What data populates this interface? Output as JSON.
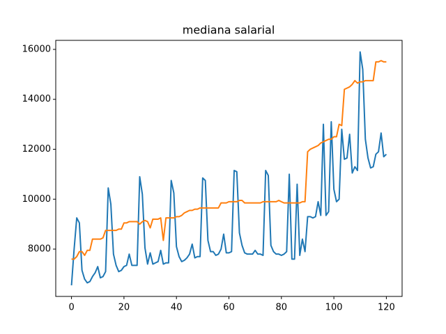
{
  "chart_data": {
    "type": "line",
    "title": "mediana salarial",
    "x": [
      0,
      1,
      2,
      3,
      4,
      5,
      6,
      7,
      8,
      9,
      10,
      11,
      12,
      13,
      14,
      15,
      16,
      17,
      18,
      19,
      20,
      21,
      22,
      23,
      24,
      25,
      26,
      27,
      28,
      29,
      30,
      31,
      32,
      33,
      34,
      35,
      36,
      37,
      38,
      39,
      40,
      41,
      42,
      43,
      44,
      45,
      46,
      47,
      48,
      49,
      50,
      51,
      52,
      53,
      54,
      55,
      56,
      57,
      58,
      59,
      60,
      61,
      62,
      63,
      64,
      65,
      66,
      67,
      68,
      69,
      70,
      71,
      72,
      73,
      74,
      75,
      76,
      77,
      78,
      79,
      80,
      81,
      82,
      83,
      84,
      85,
      86,
      87,
      88,
      89,
      90,
      91,
      92,
      93,
      94,
      95,
      96,
      97,
      98,
      99,
      100,
      101,
      102,
      103,
      104,
      105,
      106,
      107,
      108,
      109,
      110,
      111,
      112,
      113,
      114,
      115,
      116,
      117,
      118,
      119,
      120
    ],
    "series": [
      {
        "color": "#1f77b4",
        "values": [
          6550,
          8000,
          9250,
          9050,
          7150,
          6800,
          6650,
          6700,
          6900,
          7050,
          7300,
          6850,
          6900,
          7100,
          10450,
          9800,
          7800,
          7350,
          7100,
          7150,
          7300,
          7350,
          7800,
          7350,
          7350,
          7350,
          10900,
          10200,
          8050,
          7400,
          7850,
          7400,
          7450,
          7500,
          7950,
          7400,
          7450,
          7450,
          10750,
          10250,
          8100,
          7700,
          7500,
          7550,
          7650,
          7800,
          8200,
          7650,
          7700,
          7700,
          10850,
          10750,
          8350,
          7900,
          7900,
          7750,
          7800,
          8000,
          8600,
          7850,
          7850,
          7900,
          11150,
          11100,
          8650,
          8150,
          7850,
          7800,
          7800,
          7800,
          7950,
          7800,
          7800,
          7750,
          11150,
          10950,
          8150,
          7900,
          7800,
          7800,
          7750,
          7800,
          7900,
          11000,
          7600,
          7600,
          10600,
          7750,
          8400,
          7900,
          9300,
          9300,
          9250,
          9300,
          9900,
          9350,
          13000,
          9350,
          9500,
          13100,
          10400,
          9900,
          10000,
          12800,
          11600,
          11650,
          12600,
          11050,
          11300,
          11150,
          15900,
          15200,
          12400,
          11650,
          11250,
          11300,
          11800,
          11900,
          12650,
          11700,
          11800
        ]
      },
      {
        "color": "#ff7f0e",
        "values": [
          7600,
          7600,
          7700,
          7900,
          7900,
          7750,
          7950,
          7950,
          8400,
          8400,
          8400,
          8400,
          8450,
          8750,
          8750,
          8750,
          8750,
          8750,
          8800,
          8800,
          9050,
          9050,
          9100,
          9100,
          9100,
          9100,
          9000,
          9100,
          9150,
          9100,
          8850,
          9200,
          9200,
          9200,
          9250,
          8350,
          9250,
          9250,
          9250,
          9250,
          9300,
          9300,
          9350,
          9450,
          9500,
          9550,
          9550,
          9600,
          9600,
          9650,
          9650,
          9650,
          9650,
          9650,
          9650,
          9650,
          9650,
          9850,
          9850,
          9850,
          9900,
          9900,
          9900,
          9900,
          9950,
          9950,
          9850,
          9850,
          9850,
          9850,
          9850,
          9850,
          9850,
          9900,
          9900,
          9900,
          9900,
          9900,
          9900,
          9950,
          9900,
          9850,
          9850,
          9850,
          9850,
          9850,
          9850,
          9850,
          9900,
          9900,
          11900,
          12000,
          12050,
          12100,
          12150,
          12250,
          12300,
          12350,
          12400,
          12400,
          12500,
          12500,
          13000,
          12950,
          14400,
          14450,
          14500,
          14600,
          14750,
          14650,
          14700,
          14700,
          14750,
          14750,
          14750,
          14750,
          15500,
          15500,
          15550,
          15500,
          15500
        ]
      }
    ],
    "xlim": [
      -6,
      126
    ],
    "xticks": [
      0,
      20,
      40,
      60,
      80,
      100,
      120
    ],
    "ylim": [
      6105,
      16362
    ],
    "yticks": [
      8000,
      10000,
      12000,
      14000,
      16000
    ]
  }
}
